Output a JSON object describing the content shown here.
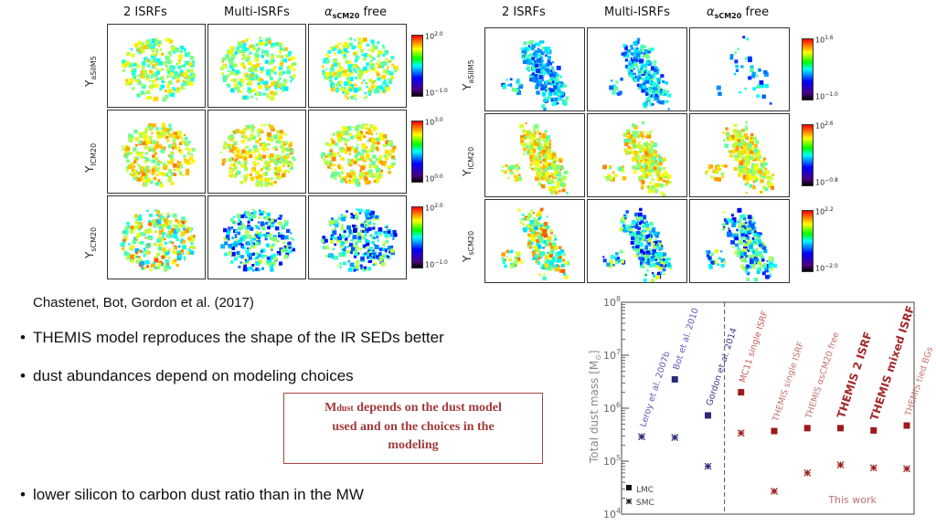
{
  "left_figure": {
    "columns": [
      "2 ISRFs",
      "Multi-ISRFs",
      "free"
    ],
    "alpha_symbol": "α",
    "alpha_sub": "sCM20",
    "rows": [
      {
        "label": "Y",
        "sub": "aSilM5",
        "cbar_top": "10",
        "cbar_top_exp": "2.0",
        "cbar_bot": "10",
        "cbar_bot_exp": "−1.0"
      },
      {
        "label": "Y",
        "sub": "lCM20",
        "cbar_top": "10",
        "cbar_top_exp": "3.0",
        "cbar_bot": "10",
        "cbar_bot_exp": "0.0"
      },
      {
        "label": "Y",
        "sub": "sCM20",
        "cbar_top": "10",
        "cbar_top_exp": "2.0",
        "cbar_bot": "10",
        "cbar_bot_exp": "−1.0"
      }
    ]
  },
  "right_figure": {
    "columns": [
      "2 ISRFs",
      "Multi-ISRFs",
      "free"
    ],
    "alpha_symbol": "α",
    "alpha_sub": "sCM20",
    "rows": [
      {
        "label": "Y",
        "sub": "aSilM5",
        "cbar_top": "10",
        "cbar_top_exp": "1.6",
        "cbar_bot": "10",
        "cbar_bot_exp": "−1.0"
      },
      {
        "label": "Y",
        "sub": "lCM20",
        "cbar_top": "10",
        "cbar_top_exp": "2.6",
        "cbar_bot": "10",
        "cbar_bot_exp": "−0.8"
      },
      {
        "label": "Y",
        "sub": "sCM20",
        "cbar_top": "10",
        "cbar_top_exp": "2.2",
        "cbar_bot": "10",
        "cbar_bot_exp": "−2.0"
      }
    ]
  },
  "citation": "Chastenet, Bot, Gordon et al. (2017)",
  "bullets": [
    "THEMIS model reproduces the shape of the IR SEDs better",
    "dust abundances depend on modeling choices",
    "lower silicon to carbon dust ratio than in the MW"
  ],
  "callout": {
    "m": "M",
    "m_sub": "dust",
    "line1": " depends on the dust model",
    "line2": "used and on the choices in the",
    "line3": "modeling"
  },
  "chart_data": {
    "type": "scatter",
    "title": "",
    "ylabel": "Total dust mass",
    "yunit": "[M",
    "yunit_sub": "⊙",
    "yunit_end": "]",
    "yscale": "log",
    "ylim": [
      10000,
      100000000
    ],
    "ytick_base": "10",
    "yticks": [
      {
        "exp": "4",
        "v": 10000
      },
      {
        "exp": "5",
        "v": 100000
      },
      {
        "exp": "6",
        "v": 1000000
      },
      {
        "exp": "7",
        "v": 10000000
      },
      {
        "exp": "8",
        "v": 100000000
      }
    ],
    "legend": [
      {
        "name": "LMC",
        "marker": "square"
      },
      {
        "name": "SMC",
        "marker": "star"
      }
    ],
    "this_work_label": "This work",
    "studies": [
      {
        "name": "Leroy et al. 2007b",
        "lmc": null,
        "smc": 290000,
        "color": "#5b5bb8",
        "style": "normal"
      },
      {
        "name": "Bot et al. 2010",
        "lmc": 3500000,
        "smc": 280000,
        "color": "#5b5bb8",
        "style": "normal"
      },
      {
        "name": "Gordon et al. 2014",
        "lmc": 730000,
        "smc": 80000,
        "color": "#3a3a8c",
        "style": "normal"
      },
      {
        "name": "MC11 single ISRF",
        "lmc": 2000000,
        "smc": 340000,
        "color": "#c85a5a",
        "style": "normal"
      },
      {
        "name": "THEMIS single ISRF",
        "lmc": 370000,
        "smc": 27000,
        "color": "#c87070",
        "style": "normal"
      },
      {
        "name": "THEMIS αsCM20 free",
        "lmc": 420000,
        "smc": 60000,
        "color": "#c87070",
        "style": "normal"
      },
      {
        "name": "THEMIS 2 ISRF",
        "lmc": 420000,
        "smc": 85000,
        "color": "#a52a2a",
        "style": "bold"
      },
      {
        "name": "THEMIS mixed ISRF",
        "lmc": 380000,
        "smc": 75000,
        "color": "#a52a2a",
        "style": "bold"
      },
      {
        "name": "THEMIS tied BGs",
        "lmc": 470000,
        "smc": 72000,
        "color": "#c87070",
        "style": "normal"
      }
    ]
  }
}
